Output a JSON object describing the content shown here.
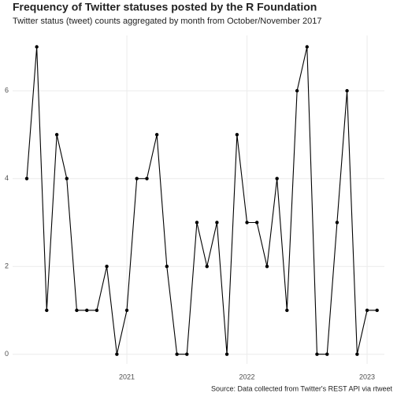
{
  "chart_data": {
    "type": "line",
    "title": "Frequency of Twitter statuses posted by the R Foundation",
    "subtitle": "Twitter status (tweet) counts aggregated by month from October/November 2017",
    "caption": "Source: Data collected from Twitter's REST API via rtweet",
    "x": [
      2020.167,
      2020.25,
      2020.333,
      2020.417,
      2020.5,
      2020.583,
      2020.667,
      2020.75,
      2020.833,
      2020.917,
      2021,
      2021.083,
      2021.167,
      2021.25,
      2021.333,
      2021.417,
      2021.5,
      2021.583,
      2021.667,
      2021.75,
      2021.833,
      2021.917,
      2022,
      2022.083,
      2022.167,
      2022.25,
      2022.333,
      2022.417,
      2022.5,
      2022.583,
      2022.667,
      2022.75,
      2022.833,
      2022.917,
      2023,
      2023.083
    ],
    "values": [
      4,
      7,
      1,
      5,
      4,
      1,
      1,
      1,
      2,
      0,
      1,
      4,
      4,
      5,
      2,
      0,
      0,
      3,
      2,
      3,
      0,
      5,
      3,
      3,
      2,
      4,
      1,
      6,
      7,
      0,
      0,
      3,
      6,
      0,
      1,
      1
    ],
    "color": "#000000",
    "xlim": [
      2020.049,
      2023.144
    ],
    "xticks": [
      2021,
      2022,
      2023
    ],
    "ylim": [
      -0.22,
      7.26
    ],
    "yticks": [
      0,
      2,
      4,
      6
    ],
    "grid": true
  }
}
